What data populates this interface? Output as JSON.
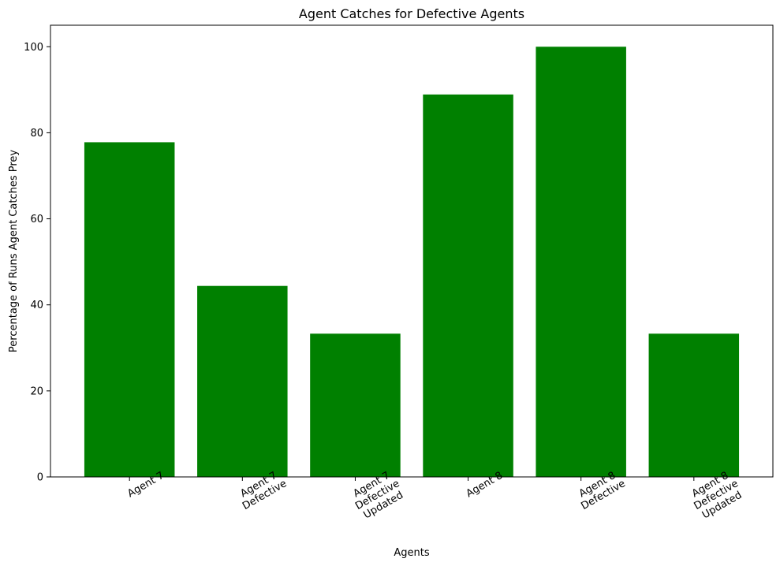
{
  "chart_data": {
    "type": "bar",
    "title": "Agent Catches for Defective Agents",
    "xlabel": "Agents",
    "ylabel": "Percentage of Runs Agent Catches Prey",
    "categories": [
      [
        "Agent 7"
      ],
      [
        "Agent 7",
        "Defective"
      ],
      [
        "Agent 7",
        "Defective",
        "Updated"
      ],
      [
        "Agent 8"
      ],
      [
        "Agent 8",
        "Defective"
      ],
      [
        "Agent 8",
        "Defective",
        "Updated"
      ]
    ],
    "values": [
      77.8,
      44.4,
      33.3,
      88.9,
      100,
      33.3
    ],
    "ylim": [
      0,
      105
    ],
    "yticks": [
      0,
      20,
      40,
      60,
      80,
      100
    ],
    "bar_color": "#008000",
    "grid": false,
    "xtick_rotation_deg": -30
  }
}
